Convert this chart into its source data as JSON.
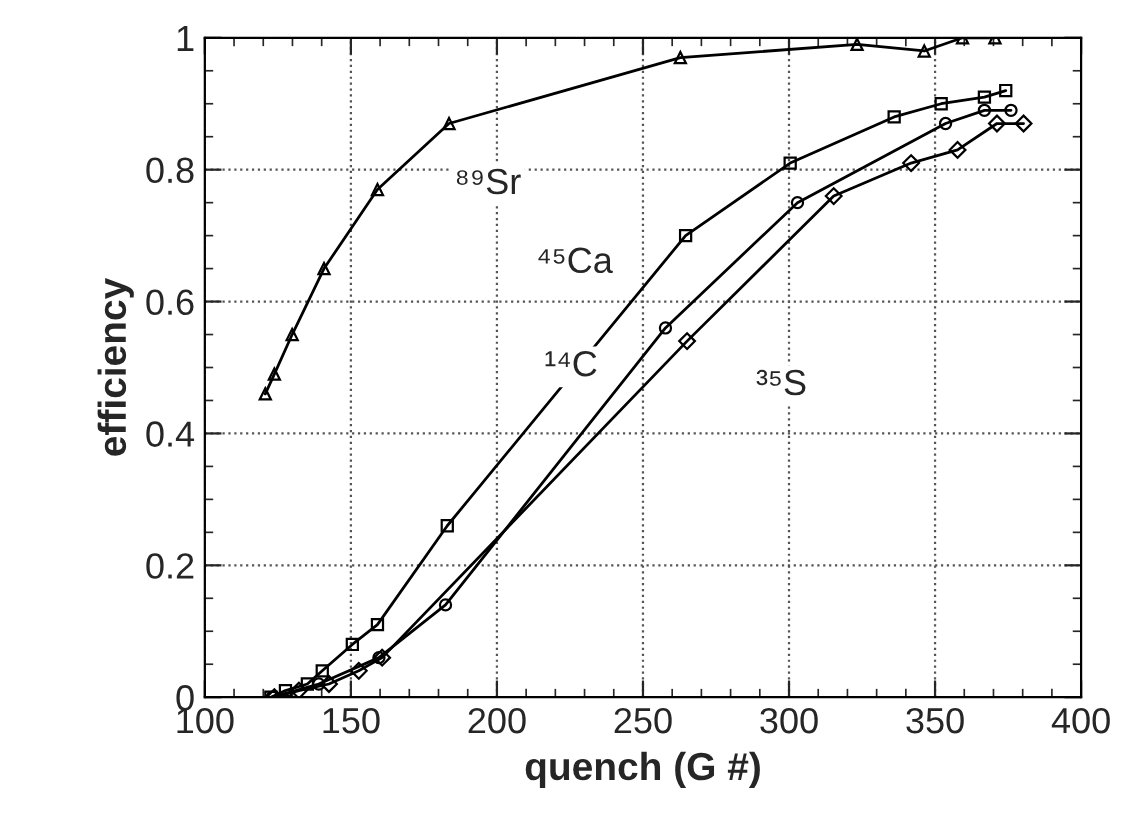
{
  "chart_data": {
    "type": "line",
    "xlabel": "quench (G #)",
    "ylabel": "efficiency",
    "xlim": [
      100,
      400
    ],
    "xticks": [
      100,
      150,
      200,
      250,
      300,
      350,
      400
    ],
    "ylim": [
      0,
      1
    ],
    "yticks": [
      0,
      0.2,
      0.4,
      0.6,
      0.8,
      1
    ],
    "grid": true,
    "line_style": "solid",
    "series": [
      {
        "color": "#000000",
        "marker": "triangle",
        "x": [
          120.7,
          123.8,
          129.9,
          140.8,
          159.1,
          183.6,
          262.8,
          323.3,
          346.3,
          359.4,
          370.5
        ],
        "values": [
          0.46,
          0.49,
          0.55,
          0.65,
          0.77,
          0.87,
          0.97,
          0.99,
          0.98,
          1.0,
          1.0
        ]
      },
      {
        "color": "#000000",
        "marker": "square",
        "x": [
          122.6,
          127.6,
          135.1,
          140.2,
          150.5,
          159.1,
          183.0,
          264.6,
          300.4,
          336.0,
          352.1,
          366.9,
          374.2
        ],
        "values": [
          0.0,
          0.01,
          0.02,
          0.04,
          0.08,
          0.11,
          0.26,
          0.7,
          0.81,
          0.88,
          0.9,
          0.91,
          0.92
        ]
      },
      {
        "color": "#000000",
        "marker": "circle",
        "x": [
          123.1,
          139.0,
          159.6,
          182.4,
          257.7,
          302.9,
          353.6,
          366.9,
          376.0
        ],
        "values": [
          0.0,
          0.02,
          0.06,
          0.14,
          0.56,
          0.75,
          0.87,
          0.89,
          0.89
        ]
      },
      {
        "color": "#000000",
        "marker": "diamond",
        "x": [
          123.8,
          132.2,
          142.5,
          152.7,
          160.7,
          265.1,
          315.3,
          341.8,
          357.7,
          371.2,
          380.3
        ],
        "values": [
          0.0,
          0.01,
          0.02,
          0.04,
          0.06,
          0.54,
          0.76,
          0.81,
          0.83,
          0.87,
          0.87
        ]
      }
    ],
    "annotations": [
      {
        "text": "⁸⁹Sr",
        "x": 183.6,
        "y": 0.87
      },
      {
        "text": "⁴⁵Ca",
        "x": 264.6,
        "y": 0.7
      },
      {
        "text": "¹⁴C",
        "x": 257.7,
        "y": 0.56
      },
      {
        "text": "³⁵S",
        "x": 265.1,
        "y": 0.54
      }
    ]
  }
}
